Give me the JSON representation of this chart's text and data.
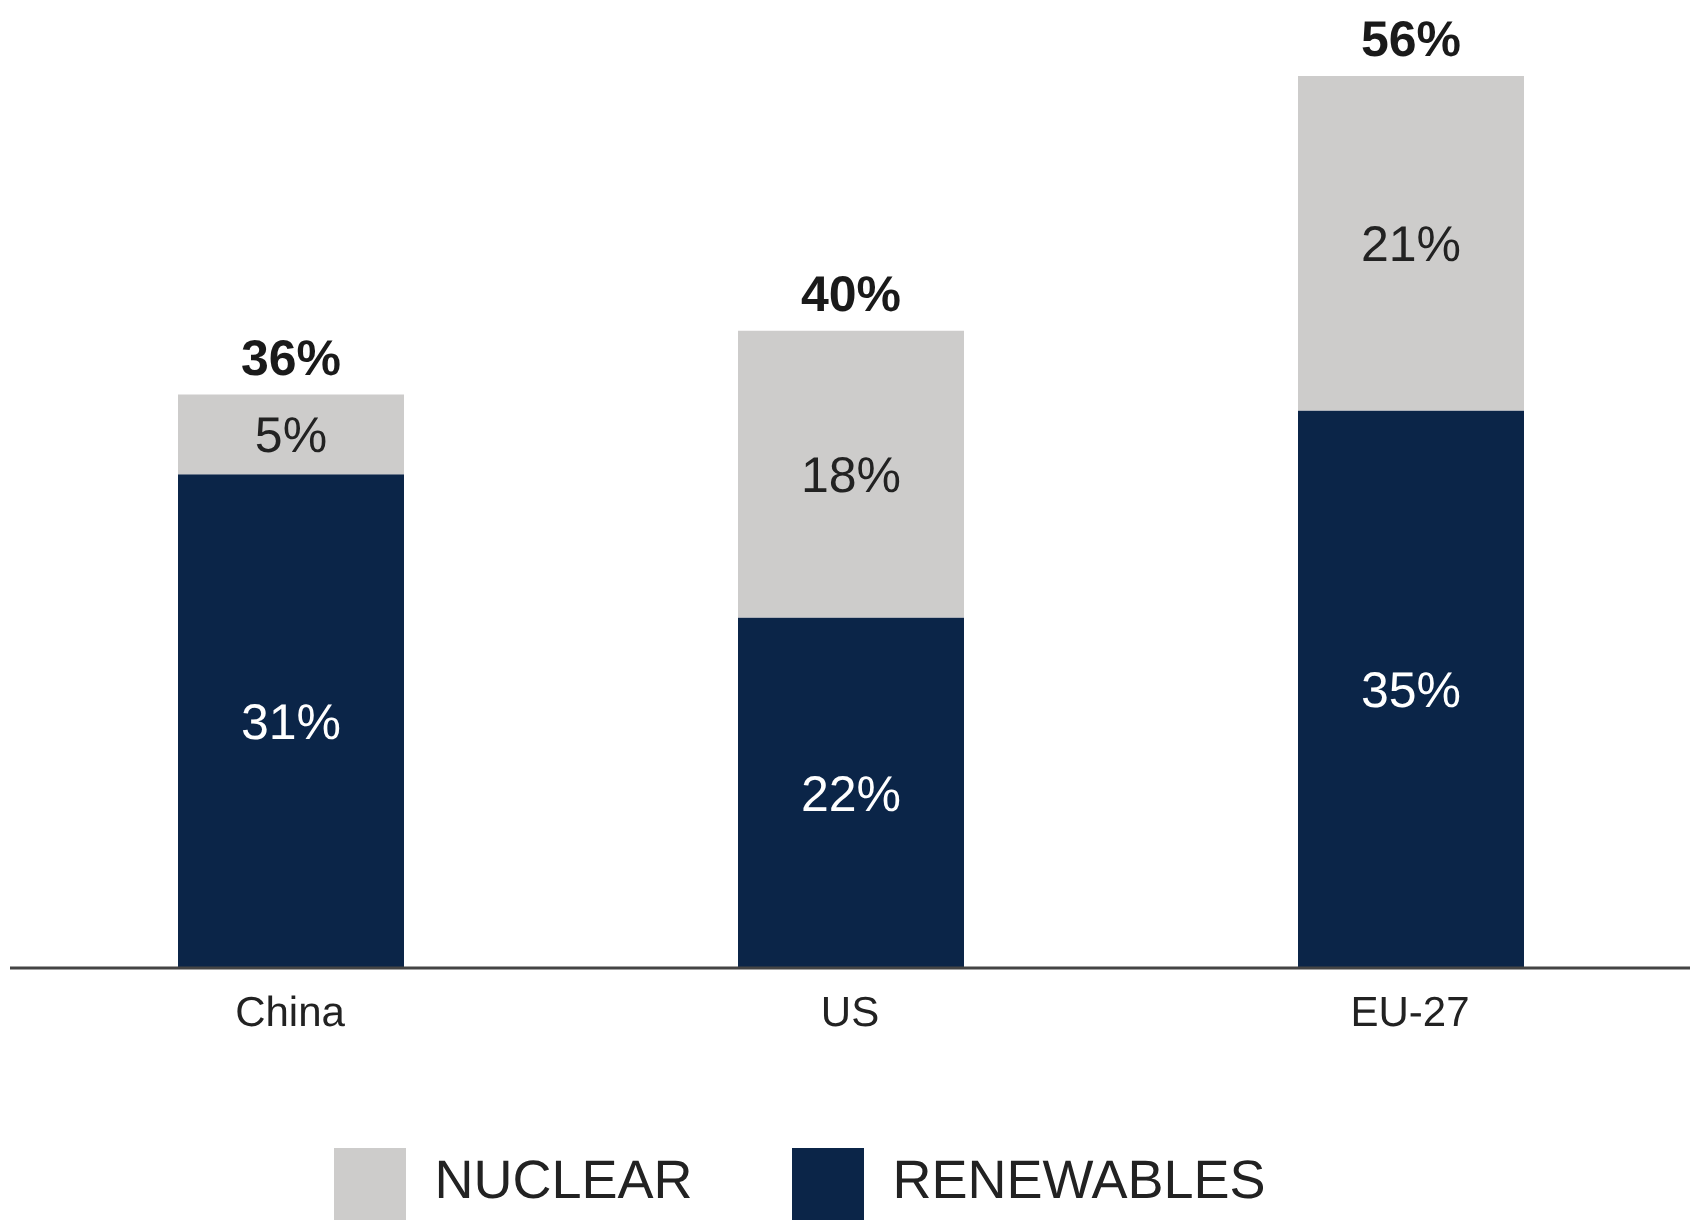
{
  "chart_data": {
    "type": "bar",
    "stacked": true,
    "categories": [
      "China",
      "US",
      "EU-27"
    ],
    "series": [
      {
        "name": "RENEWABLES",
        "color": "#0b2548",
        "values": [
          31,
          22,
          35
        ],
        "value_labels": [
          "31%",
          "22%",
          "35%"
        ]
      },
      {
        "name": "NUCLEAR",
        "color": "#cdcccb",
        "values": [
          5,
          18,
          21
        ],
        "value_labels": [
          "5%",
          "18%",
          "21%"
        ]
      }
    ],
    "totals": [
      "36%",
      "40%",
      "56%"
    ],
    "legend": "bottom",
    "grid": false
  }
}
